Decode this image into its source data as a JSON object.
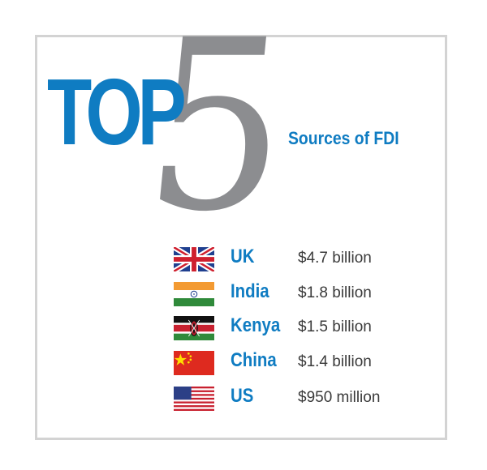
{
  "header": {
    "top_word": "TOP",
    "number": "5",
    "subtitle": "Sources of FDI"
  },
  "colors": {
    "accent": "#0f7cc2",
    "number": "#8c8d90",
    "text": "#3a3a3a"
  },
  "sources": [
    {
      "country": "UK",
      "amount": "$4.7 billion",
      "flag_icon": "uk-flag-icon"
    },
    {
      "country": "India",
      "amount": "$1.8 billion",
      "flag_icon": "india-flag-icon"
    },
    {
      "country": "Kenya",
      "amount": "$1.5 billion",
      "flag_icon": "kenya-flag-icon"
    },
    {
      "country": "China",
      "amount": "$1.4 billion",
      "flag_icon": "china-flag-icon"
    },
    {
      "country": "US",
      "amount": "$950 million",
      "flag_icon": "us-flag-icon"
    }
  ]
}
